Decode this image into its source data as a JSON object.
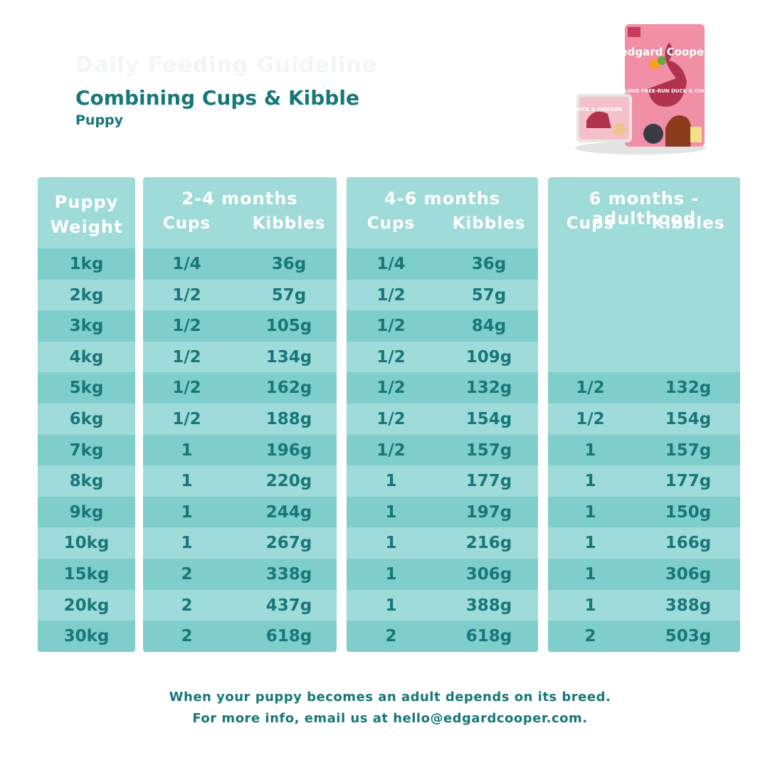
{
  "header": {
    "faint_title": "Daily Feeding Guideline",
    "title": "Combining Cups & Kibble",
    "subtitle": "Puppy"
  },
  "product": {
    "brand": "edgard Cooper",
    "bag_text": "FABULOUS FREE-RUN DUCK & CHICKEN",
    "tray_text": "DUCK & CHICKEN"
  },
  "table": {
    "weight_header": [
      "Puppy",
      "Weight"
    ],
    "cups_label": "Cups",
    "kibbles_label": "Kibbles",
    "ranges": [
      "2-4 months",
      "4-6 months",
      "6 months - adulthood"
    ],
    "weights": [
      "1kg",
      "2kg",
      "3kg",
      "4kg",
      "5kg",
      "6kg",
      "7kg",
      "8kg",
      "9kg",
      "10kg",
      "15kg",
      "20kg",
      "30kg"
    ],
    "range_2_4": [
      [
        "1/4",
        "36g"
      ],
      [
        "1/2",
        "57g"
      ],
      [
        "1/2",
        "105g"
      ],
      [
        "1/2",
        "134g"
      ],
      [
        "1/2",
        "162g"
      ],
      [
        "1/2",
        "188g"
      ],
      [
        "1",
        "196g"
      ],
      [
        "1",
        "220g"
      ],
      [
        "1",
        "244g"
      ],
      [
        "1",
        "267g"
      ],
      [
        "2",
        "338g"
      ],
      [
        "2",
        "437g"
      ],
      [
        "2",
        "618g"
      ]
    ],
    "range_4_6": [
      [
        "1/4",
        "36g"
      ],
      [
        "1/2",
        "57g"
      ],
      [
        "1/2",
        "84g"
      ],
      [
        "1/2",
        "109g"
      ],
      [
        "1/2",
        "132g"
      ],
      [
        "1/2",
        "154g"
      ],
      [
        "1/2",
        "157g"
      ],
      [
        "1",
        "177g"
      ],
      [
        "1",
        "197g"
      ],
      [
        "1",
        "216g"
      ],
      [
        "1",
        "306g"
      ],
      [
        "1",
        "388g"
      ],
      [
        "2",
        "618g"
      ]
    ],
    "range_adult": [
      [
        "",
        ""
      ],
      [
        "",
        ""
      ],
      [
        "",
        ""
      ],
      [
        "",
        ""
      ],
      [
        "1/2",
        "132g"
      ],
      [
        "1/2",
        "154g"
      ],
      [
        "1",
        "157g"
      ],
      [
        "1",
        "177g"
      ],
      [
        "1",
        "150g"
      ],
      [
        "1",
        "166g"
      ],
      [
        "1",
        "306g"
      ],
      [
        "1",
        "388g"
      ],
      [
        "2",
        "503g"
      ]
    ]
  },
  "footer": {
    "line1": "When your puppy becomes an adult depends on its breed.",
    "line2": "For more info, email us at hello@edgardcooper.com."
  }
}
